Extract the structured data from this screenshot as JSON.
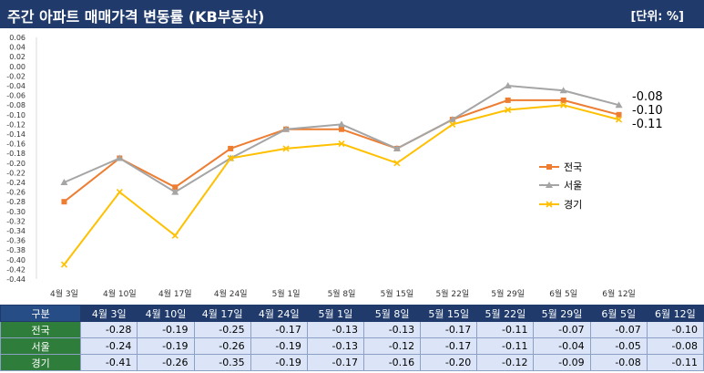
{
  "header": {
    "title": "주간 아파트 매매가격 변동률 (KB부동산)",
    "unit": "[단위: %]"
  },
  "colors": {
    "header_bg": "#1f3a6b",
    "row_label_bg": "#2f7d3a",
    "series": [
      "#ed7d31",
      "#a5a5a5",
      "#ffc000"
    ]
  },
  "chart_data": {
    "type": "line",
    "categories": [
      "4월 3일",
      "4월 10일",
      "4월 17일",
      "4월 24일",
      "5월 1일",
      "5월 8일",
      "5월 15일",
      "5월 22일",
      "5월 29일",
      "6월 5일",
      "6월 12일"
    ],
    "series": [
      {
        "name": "전국",
        "marker": "square",
        "values": [
          -0.28,
          -0.19,
          -0.25,
          -0.17,
          -0.13,
          -0.13,
          -0.17,
          -0.11,
          -0.07,
          -0.07,
          -0.1
        ]
      },
      {
        "name": "서울",
        "marker": "triangle",
        "values": [
          -0.24,
          -0.19,
          -0.26,
          -0.19,
          -0.13,
          -0.12,
          -0.17,
          -0.11,
          -0.04,
          -0.05,
          -0.08
        ]
      },
      {
        "name": "경기",
        "marker": "x",
        "values": [
          -0.41,
          -0.26,
          -0.35,
          -0.19,
          -0.17,
          -0.16,
          -0.2,
          -0.12,
          -0.09,
          -0.08,
          -0.11
        ]
      }
    ],
    "ylim": [
      -0.44,
      0.06
    ],
    "ytick_step": 0.02,
    "yticks": [
      "0.06",
      "0.04",
      "0.02",
      "0.00",
      "-0.02",
      "-0.04",
      "-0.06",
      "-0.08",
      "-0.10",
      "-0.12",
      "-0.14",
      "-0.16",
      "-0.18",
      "-0.20",
      "-0.22",
      "-0.24",
      "-0.26",
      "-0.28",
      "-0.30",
      "-0.32",
      "-0.34",
      "-0.36",
      "-0.38",
      "-0.40",
      "-0.42",
      "-0.44"
    ],
    "end_labels": [
      "-0.08",
      "-0.10",
      "-0.11"
    ],
    "legend_position": "right-middle",
    "grid": false
  },
  "table": {
    "corner": "구분",
    "headers": [
      "4월 3일",
      "4월 10일",
      "4월 17일",
      "4월 24일",
      "5월 1일",
      "5월 8일",
      "5월 15일",
      "5월 22일",
      "5월 29일",
      "6월 5일",
      "6월 12일"
    ],
    "rows": [
      {
        "label": "전국",
        "values": [
          "-0.28",
          "-0.19",
          "-0.25",
          "-0.17",
          "-0.13",
          "-0.13",
          "-0.17",
          "-0.11",
          "-0.07",
          "-0.07",
          "-0.10"
        ]
      },
      {
        "label": "서울",
        "values": [
          "-0.24",
          "-0.19",
          "-0.26",
          "-0.19",
          "-0.13",
          "-0.12",
          "-0.17",
          "-0.11",
          "-0.04",
          "-0.05",
          "-0.08"
        ]
      },
      {
        "label": "경기",
        "values": [
          "-0.41",
          "-0.26",
          "-0.35",
          "-0.19",
          "-0.17",
          "-0.16",
          "-0.20",
          "-0.12",
          "-0.09",
          "-0.08",
          "-0.11"
        ]
      }
    ]
  }
}
